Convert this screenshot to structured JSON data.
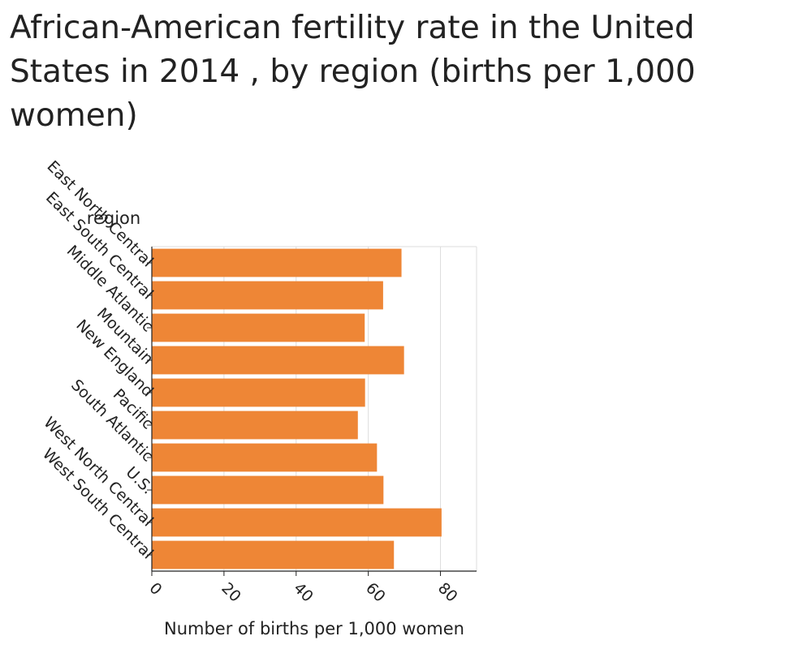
{
  "chart_data": {
    "type": "bar",
    "orientation": "horizontal",
    "title": "African-American fertility rate in the United States in 2014 , by region (births per 1,000 women)",
    "xlabel": "Number of births per 1,000 women",
    "ylabel": "region",
    "categories": [
      "East North Central",
      "East South Central",
      "Middle Atlantic",
      "Mountain",
      "New England",
      "Pacific",
      "South Atlantic",
      "U.S.",
      "West North Central",
      "West South Central"
    ],
    "values": [
      69.2,
      64.1,
      59.0,
      69.9,
      59.1,
      57.1,
      62.4,
      64.2,
      80.3,
      67.1
    ],
    "xlim": [
      0,
      90
    ],
    "xticks": [
      0,
      20,
      40,
      60,
      80
    ],
    "grid": "vertical",
    "bar_color": "#ee8636"
  }
}
